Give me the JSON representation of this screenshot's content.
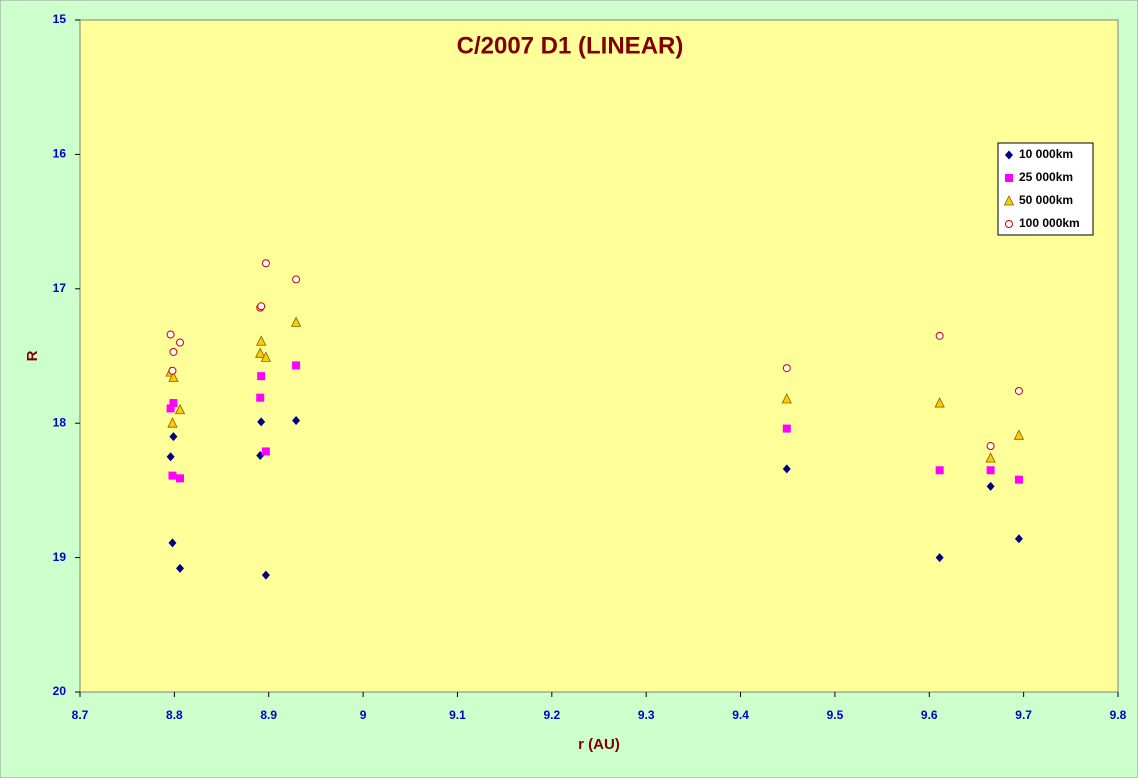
{
  "chart_data": {
    "type": "scatter",
    "title": "C/2007 D1 (LINEAR)",
    "x_label": "r (AU)",
    "y_label": "R",
    "xlim": [
      8.7,
      9.8
    ],
    "xticks": [
      8.7,
      8.8,
      8.9,
      9,
      9.1,
      9.2,
      9.3,
      9.4,
      9.5,
      9.6,
      9.7,
      9.8
    ],
    "ylim": [
      20,
      15
    ],
    "yticks": [
      15,
      16,
      17,
      18,
      19,
      20
    ],
    "legend": "upper right",
    "series": [
      {
        "name": "10 000km",
        "color": "#000080",
        "marker": "diamond",
        "x": [
          8.796,
          8.799,
          8.798,
          8.806,
          8.891,
          8.892,
          8.897,
          8.929,
          9.449,
          9.611,
          9.665,
          9.695
        ],
        "values": [
          18.25,
          18.1,
          18.89,
          19.08,
          18.24,
          17.99,
          19.13,
          17.98,
          18.34,
          19.0,
          18.47,
          18.86
        ]
      },
      {
        "name": "25 000km",
        "color": "#ff00ff",
        "marker": "square",
        "x": [
          8.796,
          8.799,
          8.798,
          8.806,
          8.892,
          8.891,
          8.897,
          8.929,
          9.449,
          9.611,
          9.665,
          9.695
        ],
        "values": [
          17.89,
          17.85,
          18.39,
          18.41,
          17.65,
          17.81,
          18.21,
          17.57,
          18.04,
          18.35,
          18.35,
          18.42
        ]
      },
      {
        "name": "50 000km",
        "color": "#ffcc00",
        "marker": "triangle",
        "x": [
          8.796,
          8.799,
          8.798,
          8.806,
          8.892,
          8.891,
          8.897,
          8.929,
          9.449,
          9.611,
          9.665,
          9.695
        ],
        "values": [
          17.62,
          17.66,
          18.0,
          17.9,
          17.39,
          17.48,
          17.51,
          17.25,
          17.82,
          17.85,
          18.26,
          18.09
        ]
      },
      {
        "name": "100 000km",
        "color": "#cc0000",
        "marker": "circle",
        "x": [
          8.796,
          8.799,
          8.806,
          8.798,
          8.891,
          8.892,
          8.897,
          8.929,
          9.449,
          9.611,
          9.665,
          9.695
        ],
        "values": [
          17.34,
          17.47,
          17.4,
          17.61,
          17.14,
          17.13,
          16.81,
          16.93,
          17.59,
          17.35,
          18.17,
          17.76
        ]
      }
    ]
  }
}
